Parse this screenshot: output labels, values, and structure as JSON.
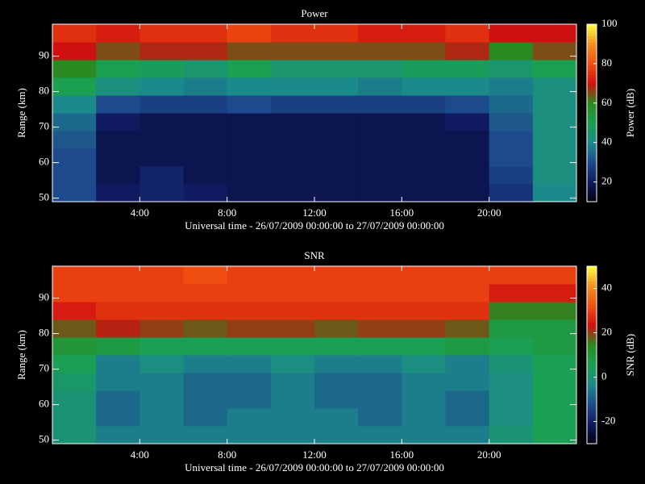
{
  "chart_data": [
    {
      "type": "heatmap",
      "title": "Power",
      "xlabel": "Universal time - 26/07/2009 00:00:00 to 27/07/2009 00:00:00",
      "ylabel": "Range (km)",
      "colorbar_label": "Power (dB)",
      "xlim": [
        0,
        24
      ],
      "xticks": [
        {
          "value": 4,
          "label": "4:00"
        },
        {
          "value": 8,
          "label": "8:00"
        },
        {
          "value": 12,
          "label": "12:00"
        },
        {
          "value": 16,
          "label": "16:00"
        },
        {
          "value": 20,
          "label": "20:00"
        }
      ],
      "ylim": [
        49,
        99
      ],
      "yticks": [
        50,
        60,
        70,
        80,
        90
      ],
      "clim": [
        10,
        100
      ],
      "cticks": [
        20,
        40,
        60,
        80,
        100
      ],
      "colormap": [
        "#000010",
        "#101a60",
        "#1d4a8c",
        "#1b8a8a",
        "#1aa050",
        "#2a8a20",
        "#d01010",
        "#f05010",
        "#f09020",
        "#ffff40"
      ],
      "xbins": [
        0,
        2,
        4,
        6,
        8,
        10,
        12,
        14,
        16,
        18,
        20,
        22,
        24
      ],
      "ybins": [
        49,
        54,
        59,
        64,
        69,
        74,
        79,
        84,
        89,
        94,
        99
      ],
      "values": [
        [
          30,
          20,
          22,
          20,
          18,
          18,
          18,
          18,
          18,
          18,
          25,
          40
        ],
        [
          30,
          18,
          22,
          18,
          18,
          18,
          18,
          18,
          18,
          18,
          28,
          42
        ],
        [
          30,
          18,
          18,
          18,
          18,
          18,
          18,
          18,
          18,
          18,
          30,
          42
        ],
        [
          32,
          18,
          18,
          18,
          18,
          18,
          18,
          18,
          18,
          18,
          30,
          42
        ],
        [
          35,
          20,
          18,
          18,
          18,
          18,
          18,
          18,
          18,
          20,
          32,
          42
        ],
        [
          40,
          30,
          28,
          28,
          30,
          28,
          28,
          28,
          28,
          30,
          35,
          42
        ],
        [
          50,
          42,
          40,
          38,
          40,
          40,
          40,
          38,
          40,
          40,
          38,
          42
        ],
        [
          60,
          50,
          48,
          45,
          50,
          45,
          45,
          45,
          48,
          48,
          45,
          50
        ],
        [
          70,
          65,
          68,
          68,
          65,
          65,
          65,
          65,
          65,
          68,
          60,
          65
        ],
        [
          75,
          72,
          75,
          75,
          78,
          75,
          75,
          72,
          72,
          75,
          70,
          70
        ]
      ]
    },
    {
      "type": "heatmap",
      "title": "SNR",
      "xlabel": "Universal time - 26/07/2009 00:00:00 to 27/07/2009 00:00:00",
      "ylabel": "Range (km)",
      "colorbar_label": "SNR (dB)",
      "xlim": [
        0,
        24
      ],
      "xticks": [
        {
          "value": 4,
          "label": "4:00"
        },
        {
          "value": 8,
          "label": "8:00"
        },
        {
          "value": 12,
          "label": "12:00"
        },
        {
          "value": 16,
          "label": "16:00"
        },
        {
          "value": 20,
          "label": "20:00"
        }
      ],
      "ylim": [
        49,
        99
      ],
      "yticks": [
        50,
        60,
        70,
        80,
        90
      ],
      "clim": [
        -30,
        50
      ],
      "cticks": [
        -20,
        0,
        20,
        40
      ],
      "colormap": [
        "#000010",
        "#101a60",
        "#1d4a8c",
        "#1b8a8a",
        "#1aa050",
        "#2a8a20",
        "#d01010",
        "#f05010",
        "#f09020",
        "#ffff40"
      ],
      "xbins": [
        0,
        2,
        4,
        6,
        8,
        10,
        12,
        14,
        16,
        18,
        20,
        22,
        24
      ],
      "ybins": [
        49,
        54,
        59,
        64,
        69,
        74,
        79,
        84,
        89,
        94,
        99
      ],
      "values": [
        [
          0,
          -5,
          -5,
          -5,
          -5,
          -5,
          -5,
          -5,
          -5,
          -5,
          0,
          5
        ],
        [
          0,
          -8,
          -5,
          -8,
          -5,
          -5,
          -5,
          -8,
          -5,
          -8,
          -2,
          5
        ],
        [
          0,
          -8,
          -5,
          -8,
          -8,
          -5,
          -8,
          -8,
          -5,
          -8,
          -2,
          5
        ],
        [
          2,
          -5,
          -5,
          -8,
          -8,
          -5,
          -8,
          -8,
          -5,
          -5,
          -2,
          5
        ],
        [
          5,
          -5,
          -2,
          -5,
          -5,
          -2,
          -5,
          -5,
          -2,
          -5,
          0,
          5
        ],
        [
          10,
          8,
          5,
          5,
          5,
          5,
          5,
          5,
          5,
          8,
          5,
          8
        ],
        [
          18,
          22,
          20,
          18,
          20,
          20,
          18,
          20,
          20,
          18,
          8,
          8
        ],
        [
          25,
          28,
          28,
          28,
          28,
          28,
          28,
          28,
          28,
          28,
          15,
          15
        ],
        [
          30,
          30,
          30,
          30,
          30,
          30,
          30,
          30,
          30,
          30,
          25,
          25
        ],
        [
          30,
          30,
          30,
          32,
          30,
          30,
          30,
          30,
          30,
          30,
          30,
          30
        ]
      ]
    }
  ]
}
